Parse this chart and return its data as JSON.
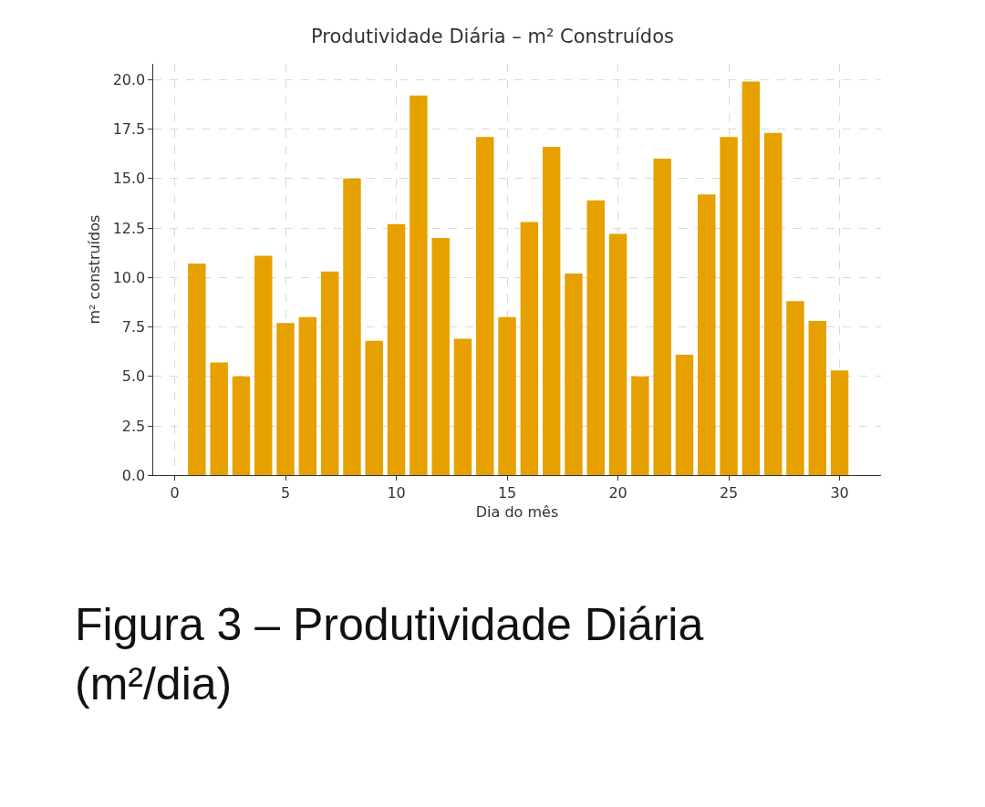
{
  "chart_data": {
    "type": "bar",
    "title": "Produtividade Diária – m² Construídos",
    "xlabel": "Dia do mês",
    "ylabel": "m² construídos",
    "x": [
      1,
      2,
      3,
      4,
      5,
      6,
      7,
      8,
      9,
      10,
      11,
      12,
      13,
      14,
      15,
      16,
      17,
      18,
      19,
      20,
      21,
      22,
      23,
      24,
      25,
      26,
      27,
      28,
      29,
      30
    ],
    "values": [
      10.7,
      5.7,
      5.0,
      11.1,
      7.7,
      8.0,
      10.3,
      15.0,
      6.8,
      12.7,
      19.2,
      12.0,
      6.9,
      17.1,
      8.0,
      12.8,
      16.6,
      10.2,
      13.9,
      12.2,
      5.0,
      16.0,
      6.1,
      14.2,
      17.1,
      19.9,
      17.3,
      8.8,
      7.8,
      5.3
    ],
    "color": "#e6a000",
    "xlim": [
      -0.95,
      31.85
    ],
    "xticks": [
      0,
      5,
      10,
      15,
      20,
      25,
      30
    ],
    "ylim": [
      0,
      20.8
    ],
    "yticks": [
      {
        "value": 0,
        "label": "0.0"
      },
      {
        "value": 2.5,
        "label": "2.5"
      },
      {
        "value": 5,
        "label": "5.0"
      },
      {
        "value": 7.5,
        "label": "7.5"
      },
      {
        "value": 10,
        "label": "10.0"
      },
      {
        "value": 12.5,
        "label": "12.5"
      },
      {
        "value": 15,
        "label": "15.0"
      },
      {
        "value": 17.5,
        "label": "17.5"
      },
      {
        "value": 20,
        "label": "20.0"
      }
    ],
    "grid": true,
    "annotations": [
      "Figura 3 – Produtividade Diária (m²/dia)"
    ]
  }
}
